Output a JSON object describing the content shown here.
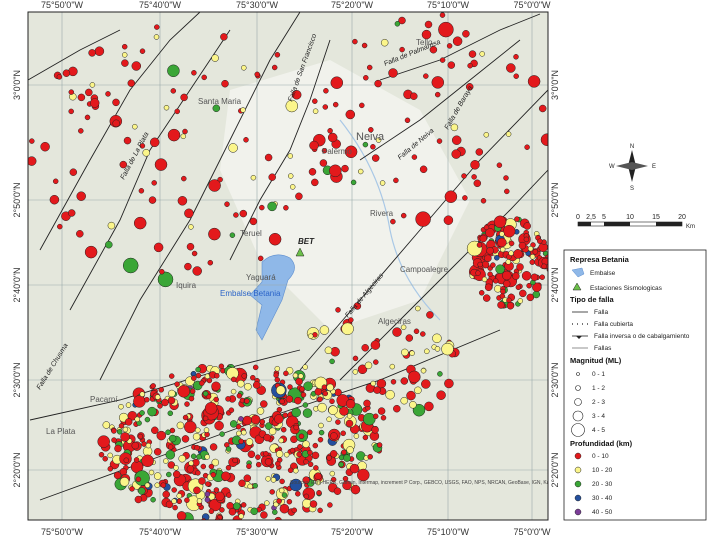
{
  "map": {
    "lon_labels": [
      "75°50'0\"W",
      "75°40'0\"W",
      "75°30'0\"W",
      "75°20'0\"W",
      "75°10'0\"W",
      "75°0'0\"W"
    ],
    "lat_labels": [
      "3°0'0\"N",
      "2°50'0\"N",
      "2°40'0\"N",
      "2°30'0\"N",
      "2°20'0\"N"
    ],
    "places": [
      "Tello",
      "Santa Maria",
      "Palermo",
      "Neiva",
      "Rivera",
      "Campoalegre",
      "Algeciras",
      "Teruel",
      "Iquira",
      "Yaguará",
      "La Plata",
      "Pacarní",
      "BET",
      "Embalse Betania"
    ],
    "faults": [
      "Falla de Palmarosa",
      "Falla de La Plata",
      "Falla de San Francisco",
      "Falla de Neiva",
      "Falla de Algeciras",
      "Falla de Chusma",
      "Falla de Baraya"
    ],
    "attribution": "Sources: Esri, HERE, Garmin, Intermap, increment P Corp., GEBCO, USGS, FAO, NPS, NRCAN, GeoBase, IGN, Kadaster NL, Ordnance Survey, Esri Japan, METI, Esri China (Hong Kong), swisstopo, © OpenStreetMap contributors, and the GIS User Community"
  },
  "compass": {
    "north": "N",
    "south": "S",
    "east": "E",
    "west": "W"
  },
  "scale": {
    "ticks": [
      "0",
      "2,5",
      "5",
      "10",
      "15",
      "20"
    ],
    "unit": "Km"
  },
  "legend": {
    "title": "Represa Betania",
    "items": [
      "Embalse",
      "Estaciones Sismologicas"
    ],
    "fault_title": "Tipo de falla",
    "fault_types": [
      "Falla",
      "Falla cubierta",
      "Falla inversa o de cabalgamiento",
      "Fallas"
    ],
    "magnitude_title": "Magnitud (ML)",
    "magnitudes": [
      "0 - 1",
      "1 - 2",
      "2 - 3",
      "3 - 4",
      "4 - 5"
    ],
    "depth_title": "Profundidad  (km)",
    "depths": [
      {
        "label": "0 - 10",
        "color": "#e3191c"
      },
      {
        "label": "10 - 20",
        "color": "#fbf58a"
      },
      {
        "label": "20 - 30",
        "color": "#3aa636"
      },
      {
        "label": "30 - 40",
        "color": "#24509e"
      },
      {
        "label": "40 - 50",
        "color": "#7b3c98"
      }
    ]
  }
}
